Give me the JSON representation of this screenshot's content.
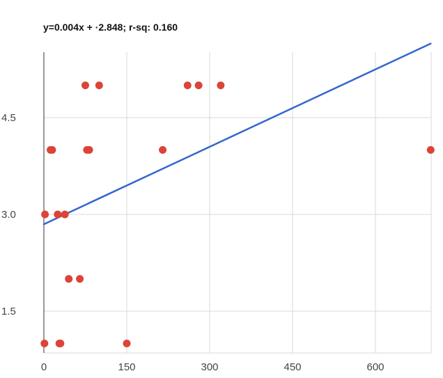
{
  "chart_data": {
    "type": "scatter",
    "title": "y=0.004x + ·2.848; r-sq: 0.160",
    "xlabel": "",
    "ylabel": "",
    "xlim": [
      0,
      700
    ],
    "ylim": [
      1,
      5.45
    ],
    "x_ticks": [
      0,
      150,
      300,
      450,
      600
    ],
    "x_tick_labels": [
      "0",
      "150",
      "300",
      "450",
      "600"
    ],
    "y_ticks": [
      1.5,
      3.0,
      4.5
    ],
    "y_tick_labels": [
      "1.5",
      "3.0",
      "4.5"
    ],
    "grid": true,
    "legend": "none",
    "colors": {
      "points": "#db4437",
      "trendline": "#3366cc",
      "grid": "#d9d9d9",
      "axis": "#333333"
    },
    "trendline": {
      "slope": 0.004,
      "intercept": 2.848
    },
    "points": [
      {
        "x": 1,
        "y": 1
      },
      {
        "x": 28,
        "y": 1
      },
      {
        "x": 30,
        "y": 1
      },
      {
        "x": 150,
        "y": 1
      },
      {
        "x": 45,
        "y": 2
      },
      {
        "x": 65,
        "y": 2
      },
      {
        "x": 2,
        "y": 3
      },
      {
        "x": 25,
        "y": 3
      },
      {
        "x": 38,
        "y": 3
      },
      {
        "x": 12,
        "y": 4
      },
      {
        "x": 15,
        "y": 4
      },
      {
        "x": 78,
        "y": 4
      },
      {
        "x": 82,
        "y": 4
      },
      {
        "x": 215,
        "y": 4
      },
      {
        "x": 700,
        "y": 4
      },
      {
        "x": 75,
        "y": 5
      },
      {
        "x": 100,
        "y": 5
      },
      {
        "x": 260,
        "y": 5
      },
      {
        "x": 280,
        "y": 5
      },
      {
        "x": 320,
        "y": 5
      }
    ]
  }
}
